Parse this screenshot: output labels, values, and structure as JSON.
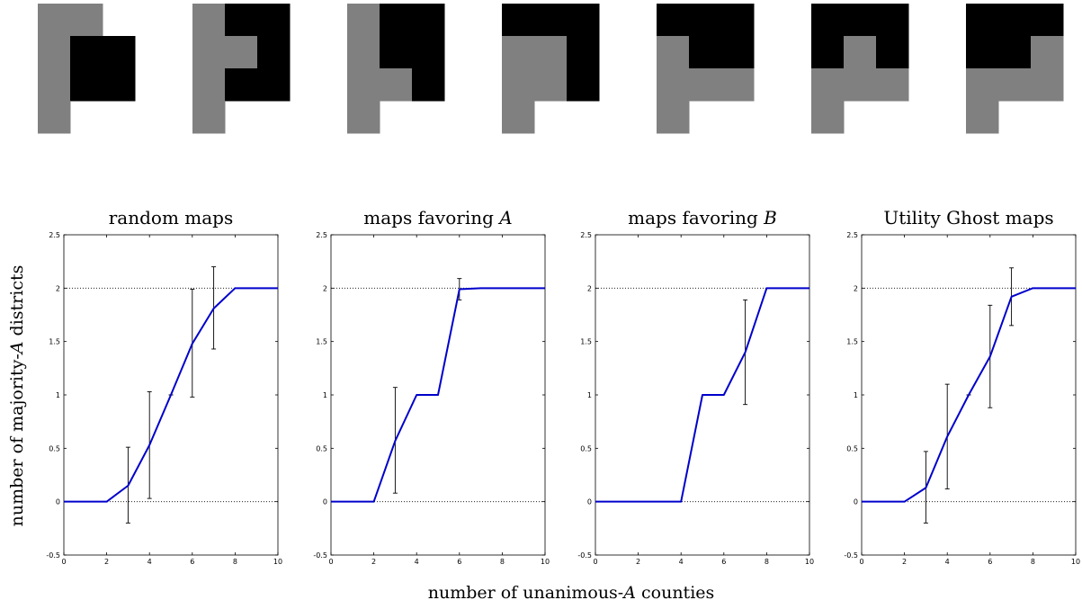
{
  "colors": {
    "line": "#0000cc",
    "error_bar": "#000000",
    "ref_line": "#000000",
    "grid_black": "#000000",
    "grid_gray": "#808080",
    "grid_white": "#ffffff"
  },
  "figure": {
    "xlabel_prefix": "number of unanimous-",
    "xlabel_var": "A",
    "xlabel_suffix": " counties",
    "ylabel_prefix": "number of majority-",
    "ylabel_var": "A",
    "ylabel_suffix": " districts"
  },
  "maps": [
    [
      [
        2,
        2,
        0
      ],
      [
        2,
        1,
        1
      ],
      [
        2,
        1,
        1
      ],
      [
        2,
        0,
        0
      ]
    ],
    [
      [
        2,
        1,
        1
      ],
      [
        2,
        2,
        1
      ],
      [
        2,
        1,
        1
      ],
      [
        2,
        0,
        0
      ]
    ],
    [
      [
        2,
        1,
        1
      ],
      [
        2,
        1,
        1
      ],
      [
        2,
        2,
        1
      ],
      [
        2,
        0,
        0
      ]
    ],
    [
      [
        1,
        1,
        1
      ],
      [
        2,
        2,
        1
      ],
      [
        2,
        2,
        1
      ],
      [
        2,
        0,
        0
      ]
    ],
    [
      [
        1,
        1,
        1
      ],
      [
        2,
        1,
        1
      ],
      [
        2,
        2,
        2
      ],
      [
        2,
        0,
        0
      ]
    ],
    [
      [
        1,
        1,
        1
      ],
      [
        1,
        2,
        1
      ],
      [
        2,
        2,
        2
      ],
      [
        2,
        0,
        0
      ]
    ],
    [
      [
        1,
        1,
        1
      ],
      [
        1,
        1,
        2
      ],
      [
        2,
        2,
        2
      ],
      [
        2,
        0,
        0
      ]
    ]
  ],
  "chart_data": [
    {
      "type": "line",
      "title_prefix": "random maps",
      "title_var": "",
      "xlim": [
        0,
        10
      ],
      "ylim": [
        -0.5,
        2.5
      ],
      "xticks": [
        0,
        2,
        4,
        6,
        8,
        10
      ],
      "yticks": [
        -0.5,
        0,
        0.5,
        1,
        1.5,
        2,
        2.5
      ],
      "reference_lines": [
        0,
        2
      ],
      "x": [
        0,
        1,
        2,
        3,
        4,
        5,
        6,
        7,
        8,
        9,
        10
      ],
      "y": [
        0,
        0,
        0,
        0.15,
        0.53,
        1.0,
        1.48,
        1.81,
        2,
        2,
        2
      ],
      "error_bars": [
        {
          "x": 3,
          "low": -0.2,
          "high": 0.51
        },
        {
          "x": 4,
          "low": 0.03,
          "high": 1.03
        },
        {
          "x": 5,
          "low": 1.0,
          "high": 1.0
        },
        {
          "x": 6,
          "low": 0.98,
          "high": 1.99
        },
        {
          "x": 7,
          "low": 1.43,
          "high": 2.2
        }
      ]
    },
    {
      "type": "line",
      "title_prefix": "maps favoring ",
      "title_var": "A",
      "xlim": [
        0,
        10
      ],
      "ylim": [
        -0.5,
        2.5
      ],
      "xticks": [
        0,
        2,
        4,
        6,
        8,
        10
      ],
      "yticks": [
        -0.5,
        0,
        0.5,
        1,
        1.5,
        2,
        2.5
      ],
      "reference_lines": [
        0,
        2
      ],
      "x": [
        0,
        1,
        2,
        3,
        4,
        5,
        6,
        7,
        8,
        9,
        10
      ],
      "y": [
        0,
        0,
        0,
        0.57,
        1,
        1,
        1.99,
        2,
        2,
        2,
        2
      ],
      "error_bars": [
        {
          "x": 3,
          "low": 0.08,
          "high": 1.07
        },
        {
          "x": 6,
          "low": 1.89,
          "high": 2.09
        }
      ]
    },
    {
      "type": "line",
      "title_prefix": "maps favoring ",
      "title_var": "B",
      "xlim": [
        0,
        10
      ],
      "ylim": [
        -0.5,
        2.5
      ],
      "xticks": [
        0,
        2,
        4,
        6,
        8,
        10
      ],
      "yticks": [
        -0.5,
        0,
        0.5,
        1,
        1.5,
        2,
        2.5
      ],
      "reference_lines": [
        0,
        2
      ],
      "x": [
        0,
        1,
        2,
        3,
        4,
        5,
        6,
        7,
        8,
        9,
        10
      ],
      "y": [
        0,
        0,
        0,
        0,
        0,
        1,
        1,
        1.4,
        2,
        2,
        2
      ],
      "error_bars": [
        {
          "x": 7,
          "low": 0.91,
          "high": 1.89
        }
      ]
    },
    {
      "type": "line",
      "title_prefix": "Utility Ghost maps",
      "title_var": "",
      "xlim": [
        0,
        10
      ],
      "ylim": [
        -0.5,
        2.5
      ],
      "xticks": [
        0,
        2,
        4,
        6,
        8,
        10
      ],
      "yticks": [
        -0.5,
        0,
        0.5,
        1,
        1.5,
        2,
        2.5
      ],
      "reference_lines": [
        0,
        2
      ],
      "x": [
        0,
        1,
        2,
        3,
        4,
        5,
        6,
        7,
        8,
        9,
        10
      ],
      "y": [
        0,
        0,
        0,
        0.13,
        0.61,
        1.0,
        1.36,
        1.92,
        2,
        2,
        2
      ],
      "error_bars": [
        {
          "x": 3,
          "low": -0.2,
          "high": 0.47
        },
        {
          "x": 4,
          "low": 0.12,
          "high": 1.1
        },
        {
          "x": 5,
          "low": 1.0,
          "high": 1.0
        },
        {
          "x": 6,
          "low": 0.88,
          "high": 1.84
        },
        {
          "x": 7,
          "low": 1.65,
          "high": 2.19
        }
      ]
    }
  ]
}
